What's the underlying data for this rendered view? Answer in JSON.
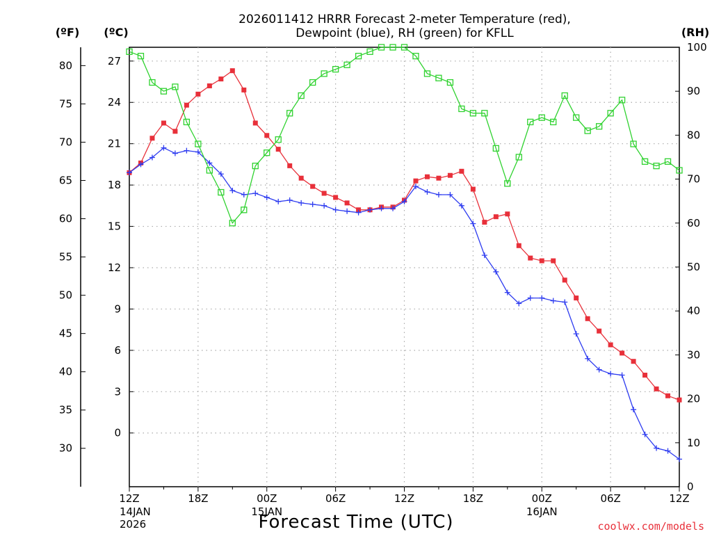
{
  "chart_data": {
    "type": "line",
    "title_line1": "2026011412 HRRR Forecast 2-meter Temperature (red),",
    "title_line2": "Dewpoint (blue), RH (green) for KFLL",
    "unit_f": "(ºF)",
    "unit_c": "(ºC)",
    "unit_rh": "(RH)",
    "xlabel": "Forecast Time (UTC)",
    "credit": "coolwx.com/models",
    "x_hours_range": [
      0,
      48
    ],
    "c_range": [
      -3.9,
      28
    ],
    "rh_range": [
      0,
      100
    ],
    "x_ticks": [
      {
        "hour": 0,
        "label": "12Z",
        "sub1": "14JAN",
        "sub2": "2026"
      },
      {
        "hour": 6,
        "label": "18Z",
        "sub1": "",
        "sub2": ""
      },
      {
        "hour": 12,
        "label": "00Z",
        "sub1": "15JAN",
        "sub2": ""
      },
      {
        "hour": 18,
        "label": "06Z",
        "sub1": "",
        "sub2": ""
      },
      {
        "hour": 24,
        "label": "12Z",
        "sub1": "",
        "sub2": ""
      },
      {
        "hour": 30,
        "label": "18Z",
        "sub1": "",
        "sub2": ""
      },
      {
        "hour": 36,
        "label": "00Z",
        "sub1": "16JAN",
        "sub2": ""
      },
      {
        "hour": 42,
        "label": "06Z",
        "sub1": "",
        "sub2": ""
      },
      {
        "hour": 48,
        "label": "12Z",
        "sub1": "",
        "sub2": ""
      }
    ],
    "f_ticks": [
      "30",
      "35",
      "40",
      "45",
      "50",
      "55",
      "60",
      "65",
      "70",
      "75",
      "80"
    ],
    "c_ticks": [
      "0",
      "3",
      "6",
      "9",
      "12",
      "15",
      "18",
      "21",
      "24",
      "27"
    ],
    "rh_ticks": [
      "0",
      "10",
      "20",
      "30",
      "40",
      "50",
      "60",
      "70",
      "80",
      "90",
      "100"
    ],
    "series": [
      {
        "name": "Temperature",
        "unit": "C",
        "color": "#e8303a",
        "marker": "filled-square",
        "values": [
          18.9,
          19.6,
          21.4,
          22.5,
          21.9,
          23.8,
          24.6,
          25.2,
          25.7,
          26.3,
          24.9,
          22.5,
          21.6,
          20.6,
          19.4,
          18.5,
          17.9,
          17.4,
          17.1,
          16.7,
          16.2,
          16.2,
          16.4,
          16.4,
          16.9,
          18.3,
          18.6,
          18.5,
          18.7,
          19.0,
          17.7,
          15.3,
          15.7,
          15.9,
          13.6,
          12.7,
          12.5,
          12.5,
          11.1,
          9.8,
          8.3,
          7.4,
          6.4,
          5.8,
          5.2,
          4.2,
          3.2,
          2.7,
          2.4
        ]
      },
      {
        "name": "Dewpoint",
        "unit": "C",
        "color": "#2e3cf0",
        "marker": "plus",
        "values": [
          18.9,
          19.5,
          20.0,
          20.7,
          20.3,
          20.5,
          20.4,
          19.6,
          18.8,
          17.6,
          17.3,
          17.4,
          17.1,
          16.8,
          16.9,
          16.7,
          16.6,
          16.5,
          16.2,
          16.1,
          16.0,
          16.2,
          16.3,
          16.3,
          16.8,
          17.9,
          17.5,
          17.3,
          17.3,
          16.5,
          15.2,
          12.9,
          11.7,
          10.2,
          9.4,
          9.8,
          9.8,
          9.6,
          9.5,
          7.2,
          5.4,
          4.6,
          4.3,
          4.2,
          1.7,
          -0.1,
          -1.1,
          -1.3,
          -1.9
        ]
      },
      {
        "name": "RH",
        "unit": "%",
        "color": "#2fd22f",
        "marker": "open-square",
        "values": [
          99,
          98,
          92,
          90,
          91,
          83,
          78,
          72,
          67,
          60,
          63,
          73,
          76,
          79,
          85,
          89,
          92,
          94,
          95,
          96,
          98,
          99,
          100,
          100,
          100,
          98,
          94,
          93,
          92,
          86,
          85,
          85,
          77,
          69,
          75,
          83,
          84,
          83,
          89,
          84,
          81,
          82,
          85,
          88,
          78,
          74,
          73,
          74,
          72
        ]
      }
    ]
  }
}
